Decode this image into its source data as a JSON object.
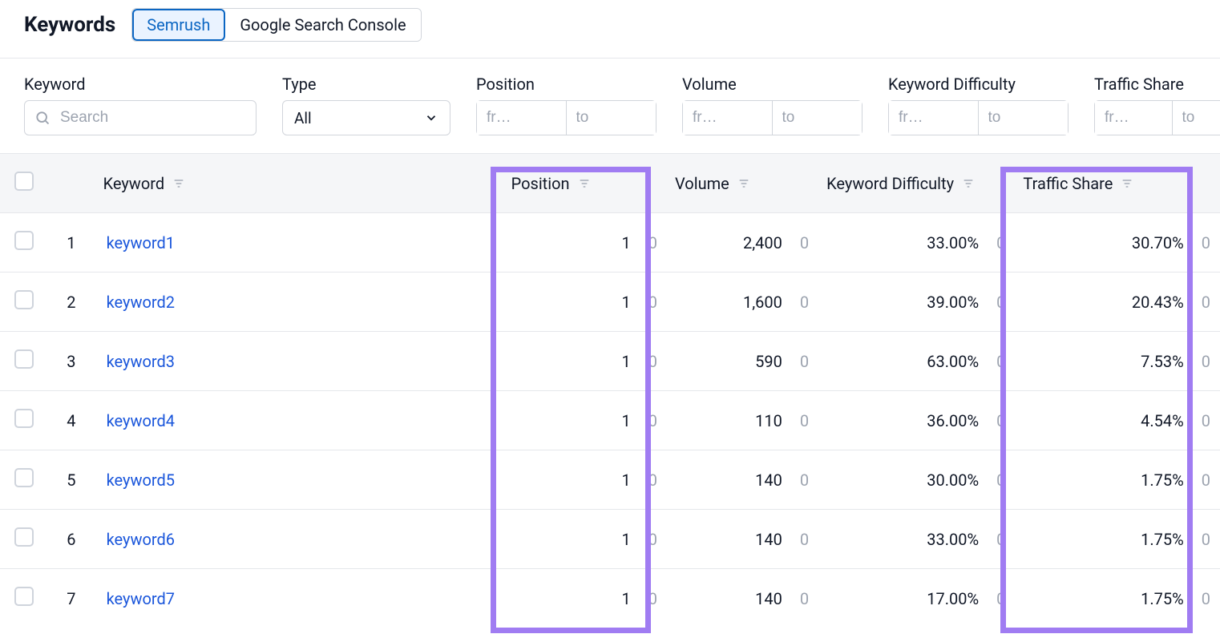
{
  "colors": {
    "link": "#1a56db",
    "muted": "#9ca3af",
    "border": "#e5e7eb",
    "highlight_border": "#a07cf2",
    "tab_active_bg": "#eaf3ff",
    "tab_active_border": "#0b66c3",
    "thead_bg": "#f5f6f8"
  },
  "header": {
    "title": "Keywords",
    "tabs": [
      {
        "label": "Semrush",
        "active": true
      },
      {
        "label": "Google Search Console",
        "active": false
      }
    ]
  },
  "filters": {
    "keyword": {
      "label": "Keyword",
      "placeholder": "Search"
    },
    "type": {
      "label": "Type",
      "value": "All"
    },
    "position": {
      "label": "Position",
      "from_placeholder": "fr…",
      "to_placeholder": "to"
    },
    "volume": {
      "label": "Volume",
      "from_placeholder": "fr…",
      "to_placeholder": "to"
    },
    "kd": {
      "label": "Keyword Difficulty",
      "from_placeholder": "fr…",
      "to_placeholder": "to"
    },
    "traffic_share": {
      "label": "Traffic Share",
      "from_placeholder": "fr…",
      "to_placeholder": "to"
    }
  },
  "table": {
    "columns": {
      "keyword": "Keyword",
      "position": "Position",
      "volume": "Volume",
      "kd": "Keyword Difficulty",
      "traffic_share": "Traffic Share"
    },
    "rows": [
      {
        "idx": "1",
        "keyword": "keyword1",
        "position": "1",
        "position_delta": "0",
        "volume": "2,400",
        "volume_delta": "0",
        "kd": "33.00%",
        "kd_delta": "0",
        "traffic_share": "30.70%",
        "ts_delta": "0"
      },
      {
        "idx": "2",
        "keyword": "keyword2",
        "position": "1",
        "position_delta": "0",
        "volume": "1,600",
        "volume_delta": "0",
        "kd": "39.00%",
        "kd_delta": "0",
        "traffic_share": "20.43%",
        "ts_delta": "0"
      },
      {
        "idx": "3",
        "keyword": "keyword3",
        "position": "1",
        "position_delta": "0",
        "volume": "590",
        "volume_delta": "0",
        "kd": "63.00%",
        "kd_delta": "0",
        "traffic_share": "7.53%",
        "ts_delta": "0"
      },
      {
        "idx": "4",
        "keyword": "keyword4",
        "position": "1",
        "position_delta": "0",
        "volume": "110",
        "volume_delta": "0",
        "kd": "36.00%",
        "kd_delta": "0",
        "traffic_share": "4.54%",
        "ts_delta": "0"
      },
      {
        "idx": "5",
        "keyword": "keyword5",
        "position": "1",
        "position_delta": "0",
        "volume": "140",
        "volume_delta": "0",
        "kd": "30.00%",
        "kd_delta": "0",
        "traffic_share": "1.75%",
        "ts_delta": "0"
      },
      {
        "idx": "6",
        "keyword": "keyword6",
        "position": "1",
        "position_delta": "0",
        "volume": "140",
        "volume_delta": "0",
        "kd": "33.00%",
        "kd_delta": "0",
        "traffic_share": "1.75%",
        "ts_delta": "0"
      },
      {
        "idx": "7",
        "keyword": "keyword7",
        "position": "1",
        "position_delta": "0",
        "volume": "140",
        "volume_delta": "0",
        "kd": "17.00%",
        "kd_delta": "0",
        "traffic_share": "1.75%",
        "ts_delta": "0"
      }
    ],
    "highlighted_columns": [
      "position",
      "traffic_share"
    ]
  }
}
